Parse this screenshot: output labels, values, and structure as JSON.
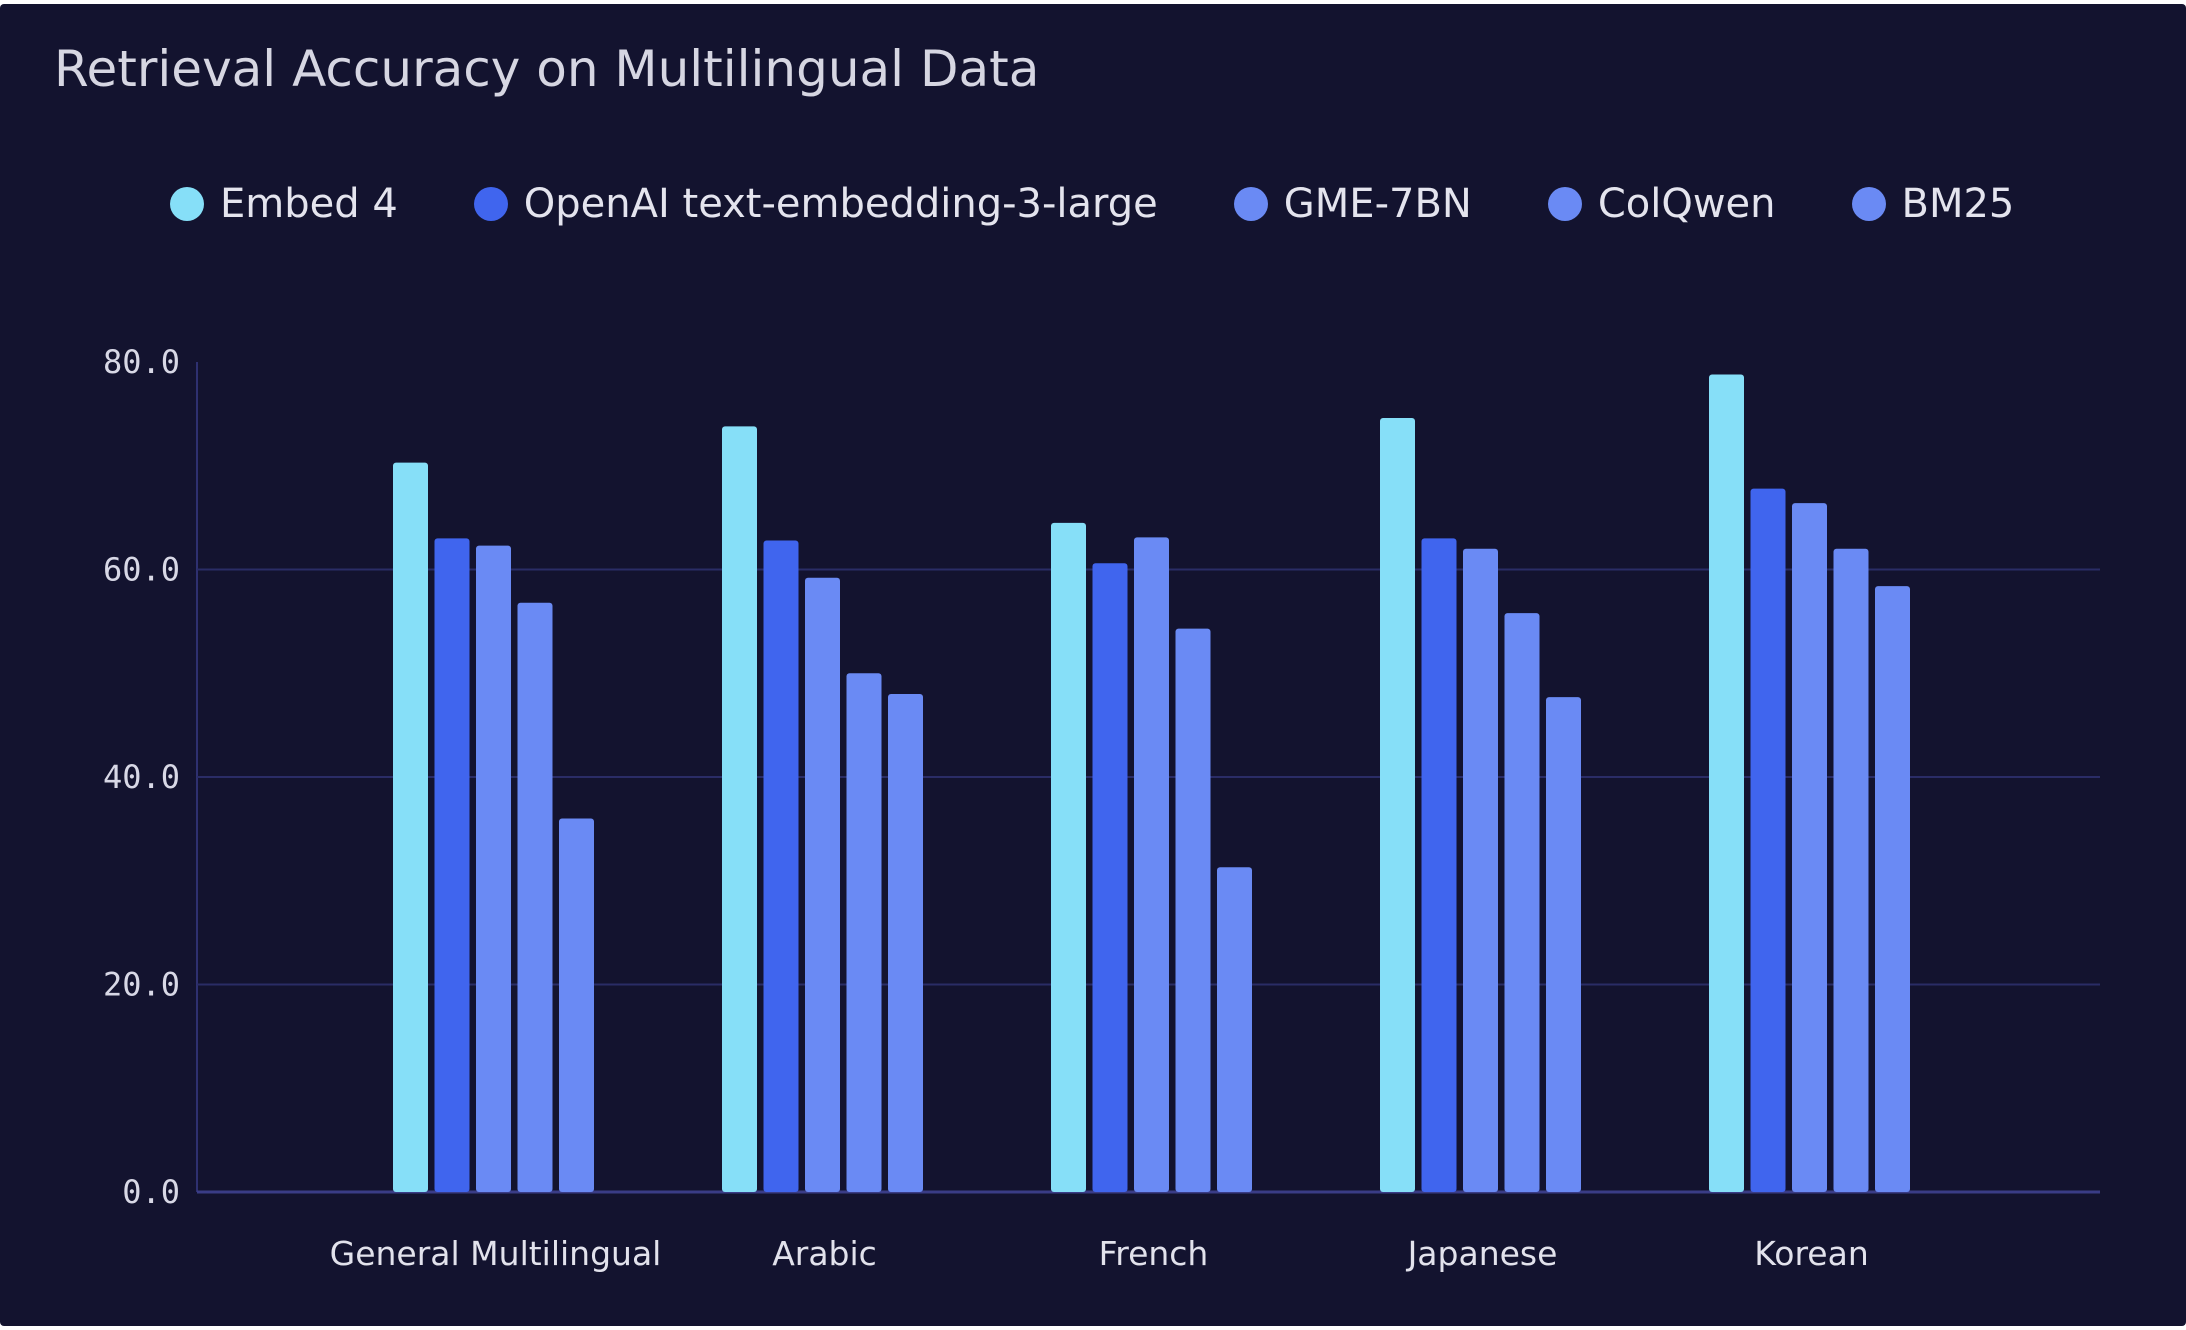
{
  "chart_data": {
    "type": "bar",
    "title": "Retrieval Accuracy on Multilingual Data",
    "xlabel": "",
    "ylabel": "",
    "ylim": [
      0,
      80
    ],
    "yticks": [
      "0.0",
      "20.0",
      "40.0",
      "60.0",
      "80.0"
    ],
    "grid": true,
    "legend_position": "top",
    "categories": [
      "General Multilingual",
      "Arabic",
      "French",
      "Japanese",
      "Korean"
    ],
    "series": [
      {
        "name": "Embed 4",
        "color": "#86dff8",
        "values": [
          70.3,
          73.8,
          64.5,
          74.6,
          78.8
        ]
      },
      {
        "name": "OpenAI text-embedding-3-large",
        "color": "#4065ee",
        "values": [
          63.0,
          62.8,
          60.6,
          63.0,
          67.8
        ]
      },
      {
        "name": "GME-7BN",
        "color": "#6a8af4",
        "values": [
          62.3,
          59.2,
          63.1,
          62.0,
          66.4
        ]
      },
      {
        "name": "ColQwen",
        "color": "#6a8af4",
        "values": [
          56.8,
          50.0,
          54.3,
          55.8,
          62.0
        ]
      },
      {
        "name": "BM25",
        "color": "#6a8af4",
        "values": [
          36.0,
          48.0,
          31.3,
          47.7,
          58.4
        ]
      }
    ]
  }
}
